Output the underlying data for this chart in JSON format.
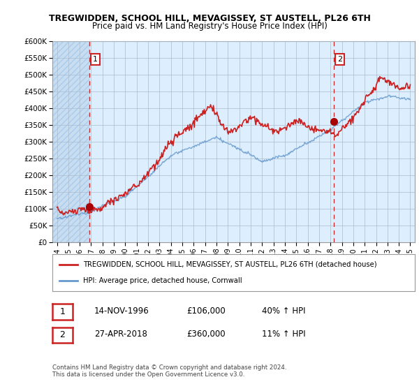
{
  "title": "TREGWIDDEN, SCHOOL HILL, MEVAGISSEY, ST AUSTELL, PL26 6TH",
  "subtitle": "Price paid vs. HM Land Registry's House Price Index (HPI)",
  "ylabel_ticks": [
    "£0",
    "£50K",
    "£100K",
    "£150K",
    "£200K",
    "£250K",
    "£300K",
    "£350K",
    "£400K",
    "£450K",
    "£500K",
    "£550K",
    "£600K"
  ],
  "ytick_values": [
    0,
    50000,
    100000,
    150000,
    200000,
    250000,
    300000,
    350000,
    400000,
    450000,
    500000,
    550000,
    600000
  ],
  "ylim": [
    0,
    600000
  ],
  "xticks": [
    1994,
    1995,
    1996,
    1997,
    1998,
    1999,
    2000,
    2001,
    2002,
    2003,
    2004,
    2005,
    2006,
    2007,
    2008,
    2009,
    2010,
    2011,
    2012,
    2013,
    2014,
    2015,
    2016,
    2017,
    2018,
    2019,
    2020,
    2021,
    2022,
    2023,
    2024,
    2025
  ],
  "sale1_x": 1996.87,
  "sale1_y": 106000,
  "sale1_label": "1",
  "sale1_date": "14-NOV-1996",
  "sale1_price": "£106,000",
  "sale1_hpi": "40% ↑ HPI",
  "sale2_x": 2018.32,
  "sale2_y": 360000,
  "sale2_label": "2",
  "sale2_date": "27-APR-2018",
  "sale2_price": "£360,000",
  "sale2_hpi": "11% ↑ HPI",
  "red_line_color": "#cc2222",
  "hpi_line_color": "#6699cc",
  "marker_color": "#aa0000",
  "legend_label_red": "TREGWIDDEN, SCHOOL HILL, MEVAGISSEY, ST AUSTELL, PL26 6TH (detached house)",
  "legend_label_blue": "HPI: Average price, detached house, Cornwall",
  "copyright_text": "Contains HM Land Registry data © Crown copyright and database right 2024.\nThis data is licensed under the Open Government Licence v3.0.",
  "chart_bg_color": "#ddeeff",
  "hatch_color": "#bbccdd",
  "grid_color": "#aabbcc",
  "sale_box_color": "#cc2222",
  "figsize": [
    6.0,
    5.6
  ],
  "dpi": 100
}
